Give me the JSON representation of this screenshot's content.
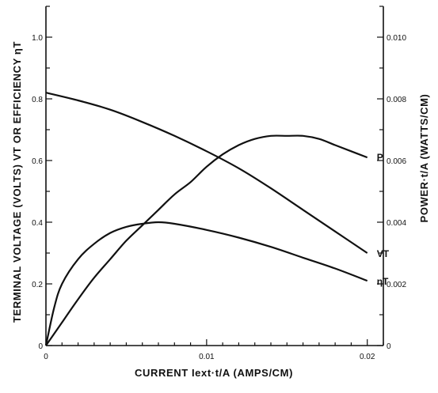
{
  "chart_data": {
    "type": "line",
    "xlabel": "CURRENT Iext·t/A (AMPS/CM)",
    "ylabel_left": "TERMINAL VOLTAGE (VOLTS) VT OR EFFICIENCY ηT",
    "ylabel_right": "POWER·t/A (WATTS/CM)",
    "xlim": [
      0,
      0.021
    ],
    "ylim_left": [
      0,
      1.1
    ],
    "ylim_right": [
      0,
      0.011
    ],
    "x_ticks": [
      0,
      0.01,
      0.02
    ],
    "x_tick_labels": [
      "0",
      "0.01",
      "0.02"
    ],
    "y_left_ticks": [
      0,
      0.2,
      0.4,
      0.6,
      0.8,
      1.0
    ],
    "y_left_tick_labels": [
      "0",
      "0.2",
      "0.4",
      "0.6",
      "0.8",
      "1.0"
    ],
    "y_right_ticks": [
      0,
      0.002,
      0.004,
      0.006,
      0.008,
      0.01
    ],
    "y_right_tick_labels": [
      "0",
      "0.002",
      "0.004",
      "0.006",
      "0.008",
      "0.010"
    ],
    "grid": false,
    "series": [
      {
        "name": "VT",
        "axis": "left",
        "x": [
          0,
          0.002,
          0.004,
          0.006,
          0.008,
          0.01,
          0.012,
          0.014,
          0.016,
          0.018,
          0.02
        ],
        "values": [
          0.82,
          0.795,
          0.765,
          0.725,
          0.68,
          0.63,
          0.575,
          0.51,
          0.44,
          0.37,
          0.3
        ]
      },
      {
        "name": "P",
        "axis": "right",
        "x": [
          0,
          0.001,
          0.002,
          0.003,
          0.004,
          0.005,
          0.006,
          0.007,
          0.008,
          0.009,
          0.01,
          0.011,
          0.012,
          0.013,
          0.014,
          0.015,
          0.016,
          0.017,
          0.018,
          0.019,
          0.02
        ],
        "values": [
          0,
          0.00075,
          0.0015,
          0.0022,
          0.0028,
          0.0034,
          0.0039,
          0.0044,
          0.0049,
          0.0053,
          0.0058,
          0.0062,
          0.0065,
          0.0067,
          0.0068,
          0.0068,
          0.0068,
          0.0067,
          0.0065,
          0.0063,
          0.0061
        ]
      },
      {
        "name": "ηT",
        "axis": "left",
        "x": [
          0,
          0.0005,
          0.001,
          0.002,
          0.003,
          0.004,
          0.005,
          0.006,
          0.007,
          0.008,
          0.01,
          0.012,
          0.014,
          0.016,
          0.018,
          0.02
        ],
        "values": [
          0,
          0.12,
          0.2,
          0.28,
          0.33,
          0.365,
          0.385,
          0.395,
          0.4,
          0.395,
          0.375,
          0.35,
          0.32,
          0.285,
          0.25,
          0.21
        ]
      }
    ],
    "curve_labels": {
      "P": "P",
      "VT": "VT",
      "eta": "ηT"
    }
  }
}
